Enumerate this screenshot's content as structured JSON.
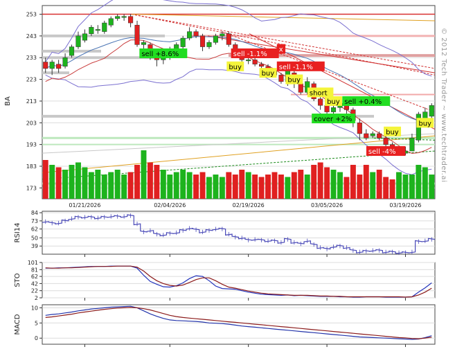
{
  "watermark": "© 2012 Tech Trader ~ www.techtrader.ai",
  "colors": {
    "up": "#1db31d",
    "down": "#e02020",
    "price_ma_blue": "#4a74b4",
    "price_ma_red": "#c83a3a",
    "band": "#7a6fd0",
    "sig_buy": "#f4f43a",
    "sig_sell": "#e82020",
    "sig_long": "#22dd22",
    "rsi": "#4a4ab8",
    "sto_k": "#2233bb",
    "sto_d": "#8b1a1a",
    "macd": "#2233aa",
    "macd_signal": "#8b1a1a"
  },
  "chart_data": [
    {
      "type": "candlestick",
      "ylabel": "BA",
      "yticks": [
        253,
        243,
        233,
        223,
        213,
        203,
        193,
        183,
        173
      ],
      "ylim": [
        168,
        257
      ],
      "x_tick_labels": [
        "01/21/2026",
        "02/04/2026",
        "02/19/2026",
        "03/05/2026",
        "03/19/2026"
      ],
      "candles": [
        {
          "o": 231,
          "c": 228,
          "h": 233,
          "l": 226
        },
        {
          "o": 228,
          "c": 231,
          "h": 232,
          "l": 225
        },
        {
          "o": 230,
          "c": 228,
          "h": 232,
          "l": 226
        },
        {
          "o": 229,
          "c": 233,
          "h": 235,
          "l": 228
        },
        {
          "o": 234,
          "c": 238,
          "h": 239,
          "l": 233
        },
        {
          "o": 238,
          "c": 243,
          "h": 245,
          "l": 237
        },
        {
          "o": 241,
          "c": 244,
          "h": 246,
          "l": 240
        },
        {
          "o": 244,
          "c": 247,
          "h": 248,
          "l": 243
        },
        {
          "o": 246,
          "c": 246,
          "h": 248,
          "l": 244
        },
        {
          "o": 245,
          "c": 249,
          "h": 250,
          "l": 244
        },
        {
          "o": 248,
          "c": 251,
          "h": 252,
          "l": 247
        },
        {
          "o": 251,
          "c": 252,
          "h": 253,
          "l": 250
        },
        {
          "o": 252,
          "c": 252,
          "h": 253,
          "l": 250
        },
        {
          "o": 252,
          "c": 249,
          "h": 253,
          "l": 247
        },
        {
          "o": 248,
          "c": 239,
          "h": 250,
          "l": 238
        },
        {
          "o": 239,
          "c": 240,
          "h": 241,
          "l": 237
        },
        {
          "o": 239,
          "c": 233,
          "h": 240,
          "l": 232
        },
        {
          "o": 233,
          "c": 232,
          "h": 234,
          "l": 229
        },
        {
          "o": 232,
          "c": 234,
          "h": 235,
          "l": 230
        },
        {
          "o": 233,
          "c": 237,
          "h": 238,
          "l": 232
        },
        {
          "o": 236,
          "c": 239,
          "h": 240,
          "l": 235
        },
        {
          "o": 238,
          "c": 242,
          "h": 243,
          "l": 237
        },
        {
          "o": 242,
          "c": 245,
          "h": 247,
          "l": 241
        },
        {
          "o": 245,
          "c": 243,
          "h": 246,
          "l": 242
        },
        {
          "o": 243,
          "c": 238,
          "h": 244,
          "l": 236
        },
        {
          "o": 238,
          "c": 240,
          "h": 241,
          "l": 237
        },
        {
          "o": 240,
          "c": 243,
          "h": 244,
          "l": 239
        },
        {
          "o": 243,
          "c": 244,
          "h": 245,
          "l": 241
        },
        {
          "o": 244,
          "c": 239,
          "h": 245,
          "l": 238
        },
        {
          "o": 239,
          "c": 236,
          "h": 240,
          "l": 234
        },
        {
          "o": 236,
          "c": 232,
          "h": 237,
          "l": 231
        },
        {
          "o": 232,
          "c": 232,
          "h": 234,
          "l": 230
        },
        {
          "o": 232,
          "c": 230,
          "h": 233,
          "l": 229
        },
        {
          "o": 230,
          "c": 229,
          "h": 231,
          "l": 228
        },
        {
          "o": 229,
          "c": 227,
          "h": 230,
          "l": 226
        },
        {
          "o": 227,
          "c": 225,
          "h": 228,
          "l": 224
        },
        {
          "o": 225,
          "c": 222,
          "h": 226,
          "l": 221
        },
        {
          "o": 222,
          "c": 227,
          "h": 228,
          "l": 220
        },
        {
          "o": 226,
          "c": 221,
          "h": 227,
          "l": 219
        },
        {
          "o": 221,
          "c": 217,
          "h": 222,
          "l": 216
        },
        {
          "o": 217,
          "c": 222,
          "h": 224,
          "l": 216
        },
        {
          "o": 221,
          "c": 214,
          "h": 222,
          "l": 213
        },
        {
          "o": 214,
          "c": 211,
          "h": 215,
          "l": 209
        },
        {
          "o": 211,
          "c": 208,
          "h": 212,
          "l": 206
        },
        {
          "o": 208,
          "c": 210,
          "h": 211,
          "l": 206
        },
        {
          "o": 210,
          "c": 212,
          "h": 213,
          "l": 208
        },
        {
          "o": 212,
          "c": 209,
          "h": 213,
          "l": 207
        },
        {
          "o": 209,
          "c": 204,
          "h": 210,
          "l": 201
        },
        {
          "o": 203,
          "c": 198,
          "h": 205,
          "l": 195
        },
        {
          "o": 198,
          "c": 196,
          "h": 200,
          "l": 195
        },
        {
          "o": 197,
          "c": 198,
          "h": 199,
          "l": 196
        },
        {
          "o": 198,
          "c": 196,
          "h": 199,
          "l": 195
        },
        {
          "o": 196,
          "c": 193,
          "h": 197,
          "l": 191
        },
        {
          "o": 193,
          "c": 189,
          "h": 194,
          "l": 188
        },
        {
          "o": 189,
          "c": 189,
          "h": 191,
          "l": 188
        },
        {
          "o": 189,
          "c": 190,
          "h": 192,
          "l": 188
        },
        {
          "o": 190,
          "c": 196,
          "h": 198,
          "l": 190
        },
        {
          "o": 195,
          "c": 207,
          "h": 208,
          "l": 194
        },
        {
          "o": 205,
          "c": 208,
          "h": 210,
          "l": 204
        },
        {
          "o": 206,
          "c": 211,
          "h": 212,
          "l": 205
        }
      ],
      "volume_rel": [
        0.8,
        0.7,
        0.65,
        0.6,
        0.7,
        0.75,
        0.65,
        0.55,
        0.6,
        0.5,
        0.55,
        0.6,
        0.5,
        0.55,
        0.7,
        1.0,
        0.75,
        0.7,
        0.6,
        0.5,
        0.55,
        0.6,
        0.55,
        0.5,
        0.55,
        0.45,
        0.5,
        0.45,
        0.55,
        0.5,
        0.6,
        0.55,
        0.5,
        0.45,
        0.5,
        0.55,
        0.5,
        0.45,
        0.55,
        0.6,
        0.5,
        0.7,
        0.75,
        0.65,
        0.6,
        0.55,
        0.45,
        0.7,
        0.5,
        0.7,
        0.55,
        0.6,
        0.45,
        0.4,
        0.55,
        0.5,
        0.5,
        0.7,
        0.65,
        0.5
      ],
      "signals": [
        {
          "label": "sell +8.6%",
          "bar": 18,
          "price": 235,
          "style": "long"
        },
        {
          "label": "sell -1.1%",
          "bar": 32,
          "price": 235,
          "style": "sell"
        },
        {
          "label": "x",
          "bar": 36,
          "price": 237,
          "style": "sell"
        },
        {
          "label": "buy",
          "bar": 29,
          "price": 229,
          "style": "buy"
        },
        {
          "label": "buy",
          "bar": 34,
          "price": 226,
          "style": "buy"
        },
        {
          "label": "sell -1.1%",
          "bar": 39,
          "price": 229,
          "style": "sell"
        },
        {
          "label": "buy",
          "bar": 38,
          "price": 223,
          "style": "buy"
        },
        {
          "label": "short",
          "bar": 42,
          "price": 217,
          "style": "buy"
        },
        {
          "label": "buy",
          "bar": 44,
          "price": 213,
          "style": "buy"
        },
        {
          "label": "sell +0.4%",
          "bar": 49,
          "price": 213,
          "style": "long"
        },
        {
          "label": "cover +2%",
          "bar": 44,
          "price": 205,
          "style": "long"
        },
        {
          "label": "buy",
          "bar": 53,
          "price": 199,
          "style": "buy"
        },
        {
          "label": "sell -4%",
          "bar": 52,
          "price": 190,
          "style": "sell"
        },
        {
          "label": "buy",
          "bar": 58,
          "price": 203,
          "style": "buy"
        }
      ]
    },
    {
      "type": "line",
      "ylabel": "RSI14",
      "yticks": [
        84,
        73,
        62,
        50,
        39
      ],
      "ylim": [
        28,
        86
      ],
      "values": [
        72,
        70,
        70,
        73,
        76,
        78,
        78,
        78,
        77,
        78,
        79,
        79,
        79,
        80,
        69,
        58,
        60,
        55,
        54,
        56,
        57,
        60,
        63,
        61,
        58,
        60,
        62,
        62,
        55,
        51,
        50,
        47,
        48,
        47,
        46,
        46,
        44,
        48,
        44,
        42,
        46,
        41,
        37,
        35,
        38,
        39,
        37,
        33,
        31,
        32,
        33,
        33,
        31,
        31,
        30,
        30,
        31,
        45,
        46,
        48
      ]
    },
    {
      "type": "line",
      "ylabel": "STO",
      "yticks": [
        101,
        81,
        62,
        42,
        22,
        2
      ],
      "ylim": [
        2,
        101
      ],
      "series": [
        {
          "values": [
            85,
            85,
            86,
            86,
            87,
            88,
            89,
            90,
            90,
            90,
            91,
            91,
            91,
            91,
            85,
            65,
            48,
            40,
            33,
            32,
            36,
            44,
            56,
            64,
            62,
            50,
            35,
            28,
            27,
            26,
            22,
            18,
            15,
            12,
            11,
            10,
            9,
            10,
            8,
            9,
            8,
            7,
            6,
            6,
            6,
            5,
            5,
            4,
            4,
            5,
            5,
            5,
            4,
            4,
            4,
            4,
            5,
            18,
            30,
            44
          ]
        },
        {
          "values": [
            86,
            85,
            85,
            86,
            86,
            87,
            88,
            89,
            90,
            90,
            90,
            91,
            91,
            91,
            88,
            77,
            62,
            50,
            42,
            37,
            35,
            38,
            45,
            53,
            58,
            58,
            50,
            40,
            32,
            29,
            25,
            21,
            18,
            15,
            13,
            12,
            11,
            10,
            9,
            9,
            9,
            8,
            7,
            7,
            6,
            6,
            5,
            5,
            5,
            5,
            5,
            5,
            5,
            5,
            5,
            4,
            5,
            10,
            18,
            29
          ]
        }
      ]
    },
    {
      "type": "line",
      "ylabel": "MACD",
      "yticks": [
        10,
        5,
        0
      ],
      "ylim": [
        -2,
        11
      ],
      "series": [
        {
          "values": [
            7.5,
            7.8,
            8,
            8.3,
            8.6,
            9,
            9.3,
            9.6,
            9.8,
            10,
            10.2,
            10.3,
            10.4,
            10.5,
            10,
            9,
            8,
            7.2,
            6.5,
            6,
            5.8,
            5.7,
            5.6,
            5.5,
            5.3,
            5,
            4.9,
            4.8,
            4.6,
            4.3,
            4,
            3.8,
            3.6,
            3.4,
            3.2,
            3,
            2.8,
            2.6,
            2.4,
            2.2,
            2,
            1.8,
            1.6,
            1.4,
            1.2,
            1,
            0.8,
            0.6,
            0.4,
            0.3,
            0.2,
            0.1,
            0,
            -0.1,
            -0.2,
            -0.3,
            -0.4,
            -0.3,
            0.2,
            0.8
          ]
        },
        {
          "values": [
            6.8,
            7,
            7.3,
            7.6,
            7.9,
            8.3,
            8.6,
            8.9,
            9.2,
            9.5,
            9.7,
            9.9,
            10,
            10.1,
            10,
            9.7,
            9.3,
            8.7,
            8.1,
            7.5,
            7.1,
            6.8,
            6.6,
            6.4,
            6.2,
            6,
            5.8,
            5.6,
            5.4,
            5.2,
            5,
            4.8,
            4.6,
            4.4,
            4.2,
            4,
            3.8,
            3.6,
            3.4,
            3.2,
            3,
            2.8,
            2.6,
            2.4,
            2.2,
            2,
            1.8,
            1.6,
            1.4,
            1.2,
            1,
            0.8,
            0.6,
            0.4,
            0.2,
            0.1,
            -0.1,
            -0.2,
            0,
            0.3
          ]
        }
      ]
    }
  ]
}
